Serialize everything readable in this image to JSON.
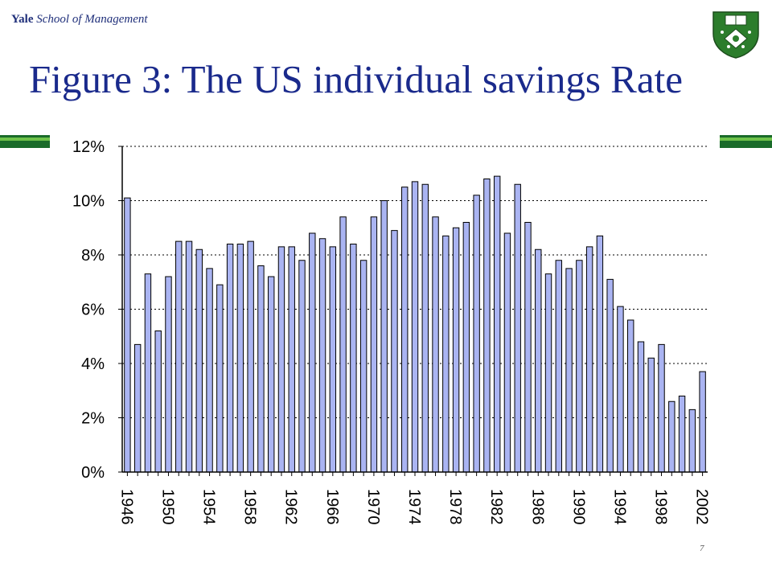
{
  "header": {
    "brand_yale": "Yale",
    "brand_school": "School of Management",
    "title": "Figure 3: The US individual savings Rate",
    "slide_number": "7"
  },
  "colors": {
    "title": "#1a2a8c",
    "bar_fill": "#aab4f2",
    "bar_stroke": "#000000",
    "side_bar_dark": "#1a6b2a",
    "side_bar_light": "#6fc24a",
    "crest_green": "#2c7d2c"
  },
  "chart_data": {
    "type": "bar",
    "title": "",
    "xlabel": "",
    "ylabel": "",
    "ylim": [
      0,
      12
    ],
    "y_ticks": [
      "0%",
      "2%",
      "4%",
      "6%",
      "8%",
      "10%",
      "12%"
    ],
    "y_tick_values": [
      0,
      2,
      4,
      6,
      8,
      10,
      12
    ],
    "grid": "horizontal dotted",
    "x_tick_labels": [
      "1946",
      "1950",
      "1954",
      "1958",
      "1962",
      "1966",
      "1970",
      "1974",
      "1978",
      "1982",
      "1986",
      "1990",
      "1994",
      "1998",
      "2002"
    ],
    "categories": [
      1946,
      1947,
      1948,
      1949,
      1950,
      1951,
      1952,
      1953,
      1954,
      1955,
      1956,
      1957,
      1958,
      1959,
      1960,
      1961,
      1962,
      1963,
      1964,
      1965,
      1966,
      1967,
      1968,
      1969,
      1970,
      1971,
      1972,
      1973,
      1974,
      1975,
      1976,
      1977,
      1978,
      1979,
      1980,
      1981,
      1982,
      1983,
      1984,
      1985,
      1986,
      1987,
      1988,
      1989,
      1990,
      1991,
      1992,
      1993,
      1994,
      1995,
      1996,
      1997,
      1998,
      1999,
      2000,
      2001,
      2002
    ],
    "values": [
      10.1,
      4.7,
      7.3,
      5.2,
      7.2,
      8.5,
      8.5,
      8.2,
      7.5,
      6.9,
      8.4,
      8.4,
      8.5,
      7.6,
      7.2,
      8.3,
      8.3,
      7.8,
      8.8,
      8.6,
      8.3,
      9.4,
      8.4,
      7.8,
      9.4,
      10.0,
      8.9,
      10.5,
      10.7,
      10.6,
      9.4,
      8.7,
      9.0,
      9.2,
      10.2,
      10.8,
      10.9,
      8.8,
      10.6,
      9.2,
      8.2,
      7.3,
      7.8,
      7.5,
      7.8,
      8.3,
      8.7,
      7.1,
      6.1,
      5.6,
      4.8,
      4.2,
      4.7,
      2.6,
      2.8,
      2.3,
      3.7
    ]
  }
}
